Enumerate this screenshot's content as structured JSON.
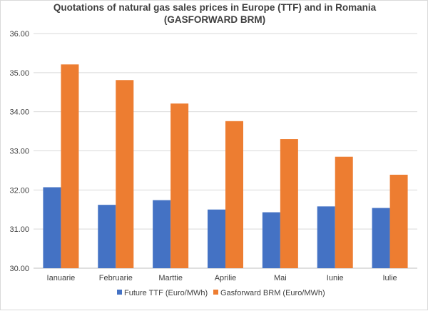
{
  "chart_data": {
    "type": "bar",
    "title_line1": "Quotations of natural gas sales prices in Europe (TTF) and in Romania",
    "title_line2": "(GASFORWARD BRM)",
    "categories": [
      "Ianuarie",
      "Februarie",
      "Marttie",
      "Aprilie",
      "Mai",
      "Iunie",
      "Iulie"
    ],
    "series": [
      {
        "name": "Future TTF (Euro/MWh)",
        "color": "#4472c4",
        "values": [
          32.07,
          31.62,
          31.74,
          31.5,
          31.43,
          31.58,
          31.54
        ]
      },
      {
        "name": "Gasforward BRM (Euro/MWh)",
        "color": "#ed7d31",
        "values": [
          35.21,
          34.81,
          34.21,
          33.76,
          33.3,
          32.85,
          32.39
        ]
      }
    ],
    "ylim": [
      30,
      36
    ],
    "yticks": [
      "30.00",
      "31.00",
      "32.00",
      "33.00",
      "34.00",
      "35.00",
      "36.00"
    ],
    "grid": true,
    "legend_position": "bottom"
  }
}
